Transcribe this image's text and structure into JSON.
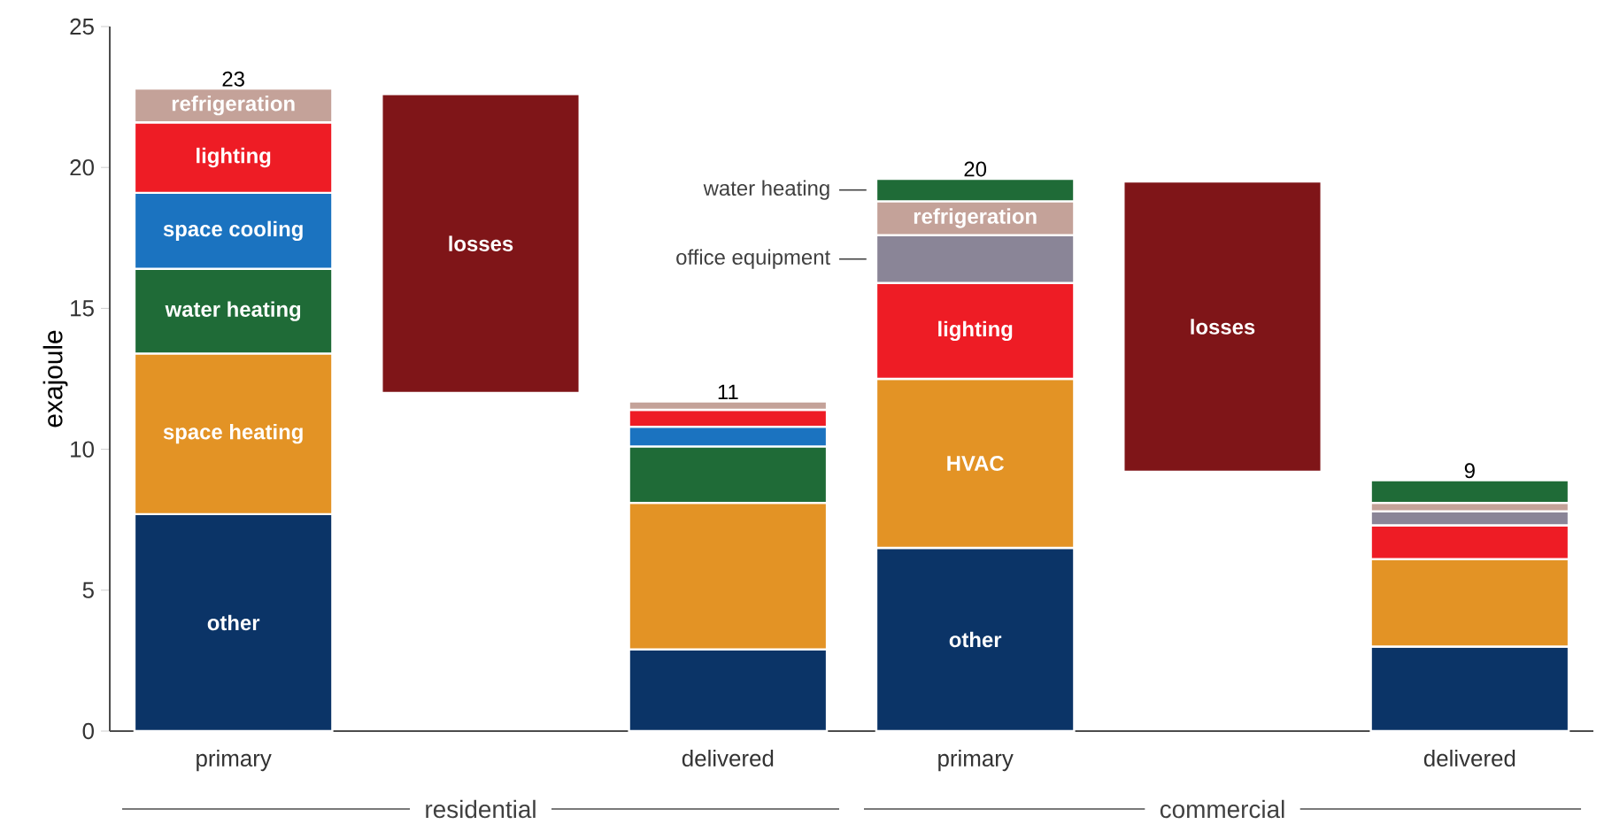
{
  "chart_data": {
    "type": "bar",
    "stacked": true,
    "ylabel": "exajoule",
    "categories": [
      "primary",
      null,
      "delivered",
      "primary",
      null,
      "delivered"
    ],
    "ylim": [
      0,
      25
    ],
    "yticks": [
      0,
      5,
      10,
      15,
      20,
      25
    ],
    "series": [
      {
        "color": "#0b3467",
        "values": [
          7.7,
          null,
          2.9,
          6.5,
          null,
          3.0
        ],
        "value_labels": [
          "other",
          null,
          null,
          "other",
          null,
          null
        ]
      },
      {
        "color": "#e39325",
        "values": [
          5.7,
          null,
          5.2,
          6.0,
          null,
          3.1
        ],
        "value_labels": [
          "space heating",
          null,
          null,
          "HVAC",
          null,
          null
        ]
      },
      {
        "color": "#1f6b37",
        "values": [
          3.0,
          null,
          2.0,
          null,
          null,
          null
        ],
        "value_labels": [
          "water heating",
          null,
          null,
          null,
          null,
          null
        ]
      },
      {
        "color": "#1b73c0",
        "values": [
          2.7,
          null,
          0.7,
          null,
          null,
          null
        ],
        "value_labels": [
          "space cooling",
          null,
          null,
          null,
          null,
          null
        ]
      },
      {
        "color": "#ee1c25",
        "values": [
          2.5,
          null,
          0.6,
          3.4,
          null,
          1.2
        ],
        "value_labels": [
          "lighting",
          null,
          null,
          "lighting",
          null,
          null
        ]
      },
      {
        "color": "#8a8597",
        "values": [
          null,
          null,
          null,
          1.7,
          null,
          0.5
        ],
        "value_labels": [
          null,
          null,
          null,
          "office equipment",
          null,
          null
        ]
      },
      {
        "color": "#c4a299",
        "values": [
          1.2,
          null,
          0.3,
          1.2,
          null,
          0.3
        ],
        "value_labels": [
          "refrigeration",
          null,
          null,
          "refrigeration",
          null,
          null
        ]
      },
      {
        "color": "#1f6b37",
        "values": [
          null,
          null,
          null,
          0.8,
          null,
          0.8
        ],
        "value_labels": [
          null,
          null,
          null,
          "water heating",
          null,
          null
        ]
      },
      {
        "color": "#7f1518",
        "values": [
          null,
          10.6,
          null,
          null,
          10.3,
          null
        ],
        "base": [
          null,
          12.0,
          null,
          null,
          9.2,
          null
        ],
        "value_labels": [
          null,
          "losses",
          null,
          null,
          "losses",
          null
        ]
      }
    ],
    "totals": [
      "23",
      null,
      "11",
      "20",
      null,
      "9"
    ],
    "annotations": [
      "residential",
      "commercial"
    ]
  }
}
